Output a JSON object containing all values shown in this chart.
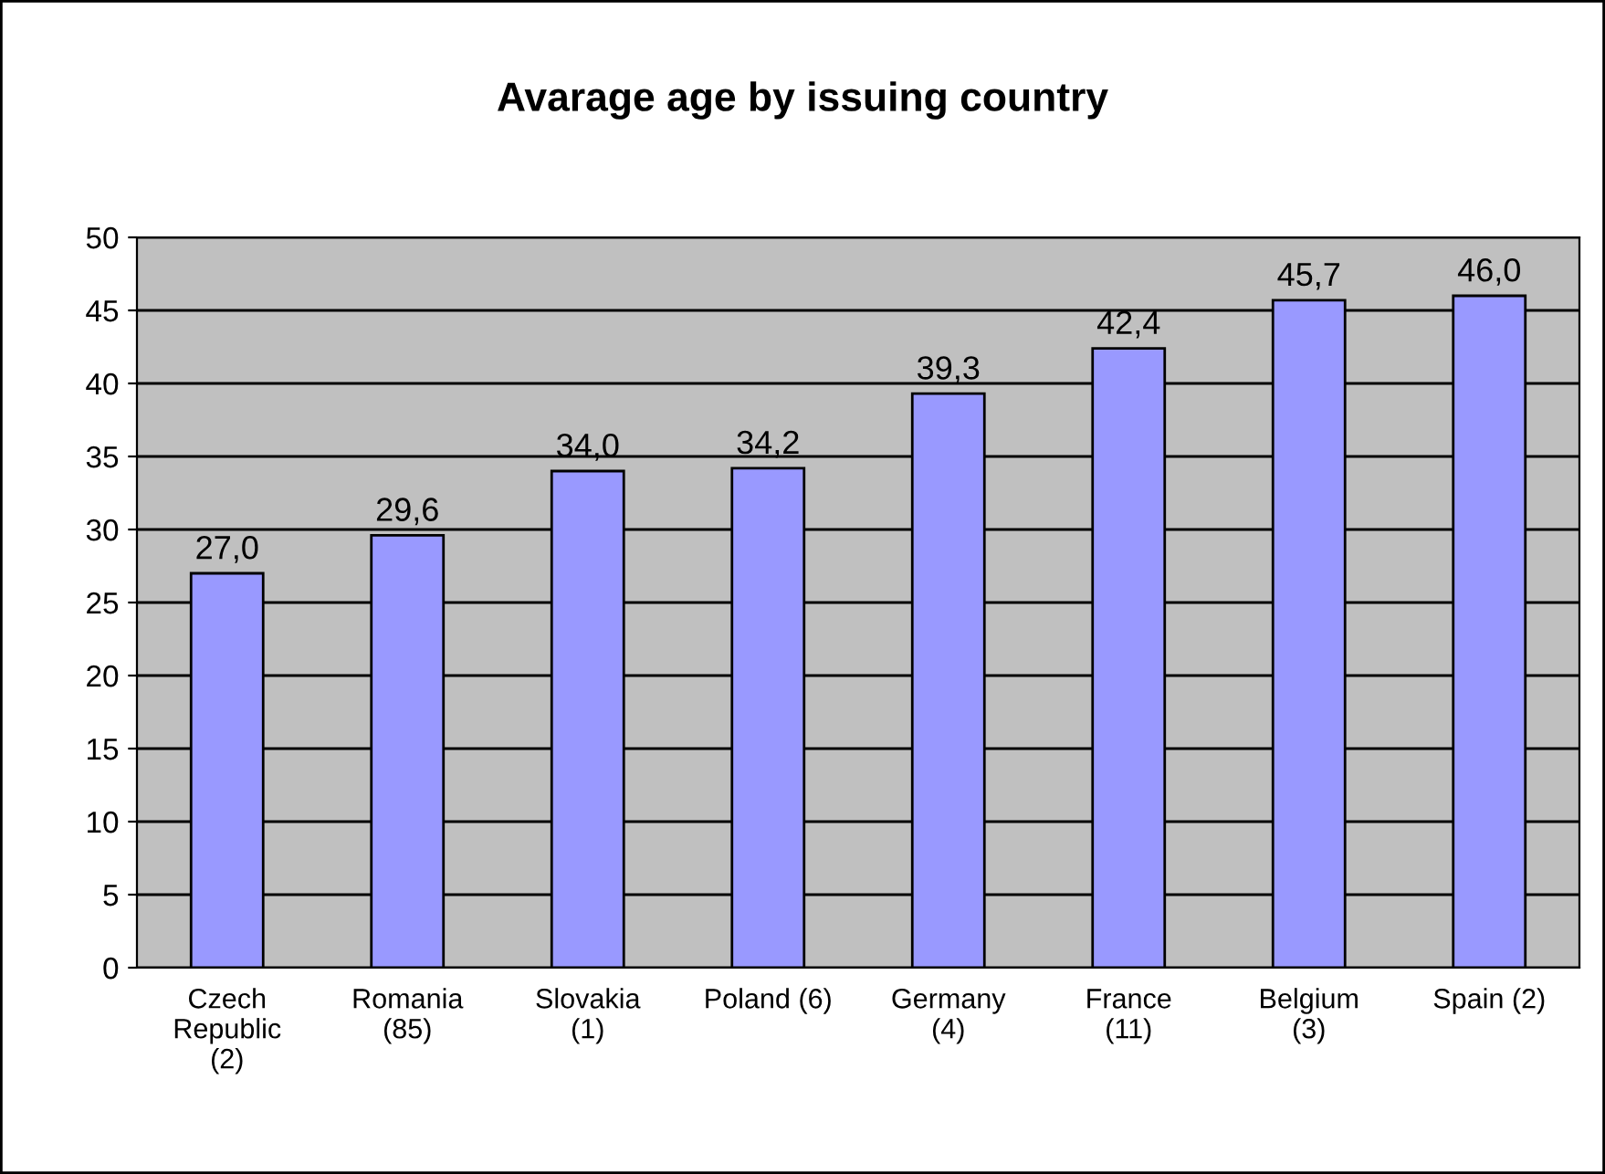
{
  "chart_data": {
    "type": "bar",
    "title": "Avarage age by issuing country",
    "categories": [
      "Czech\nRepublic\n(2)",
      "Romania\n(85)",
      "Slovakia\n(1)",
      "Poland (6)",
      "Germany\n(4)",
      "France\n(11)",
      "Belgium\n(3)",
      "Spain (2)"
    ],
    "values": [
      27.0,
      29.6,
      34.0,
      34.2,
      39.3,
      42.4,
      45.7,
      46.0
    ],
    "value_labels": [
      "27,0",
      "29,6",
      "34,0",
      "34,2",
      "39,3",
      "42,4",
      "45,7",
      "46,0"
    ],
    "color": "#9999ff",
    "ylim": [
      0,
      50
    ],
    "yticks": [
      0,
      5,
      10,
      15,
      20,
      25,
      30,
      35,
      40,
      45,
      50
    ],
    "grid": "y"
  }
}
